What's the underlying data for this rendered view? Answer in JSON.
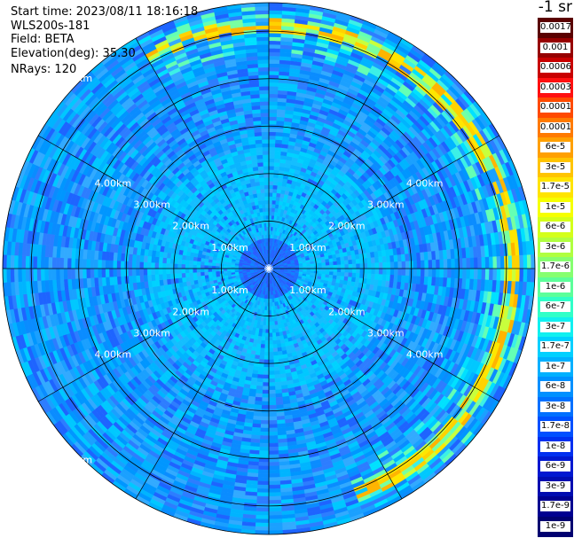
{
  "header": {
    "start_time": "Start time: 2023/08/11 18:16:18",
    "device": "WLS200s-181",
    "field": "Field: BETA",
    "elevation": "Elevation(deg): 35.30",
    "nrays": "NRays: 120"
  },
  "unit_label": "-1 sr",
  "chart_data": {
    "type": "heatmap",
    "projection": "polar",
    "n_rays": 120,
    "range_rings": [
      {
        "label": "1.00km",
        "km": 1.0
      },
      {
        "label": "2.00km",
        "km": 2.0
      },
      {
        "label": "3.00km",
        "km": 3.0
      },
      {
        "label": "4.00km",
        "km": 4.0
      },
      {
        "label": "5.00km",
        "km": 5.0
      }
    ],
    "max_range_km": 5.6,
    "colorbar": {
      "labels": [
        "0.0017",
        "0.001",
        "0.0006",
        "0.0003",
        "0.00017",
        "0.0001",
        "6e-5",
        "3e-5",
        "1.7e-5",
        "1e-5",
        "6e-6",
        "3e-6",
        "1.7e-6",
        "1e-6",
        "6e-7",
        "3e-7",
        "1.7e-7",
        "1e-7",
        "6e-8",
        "3e-8",
        "1.7e-8",
        "1e-8",
        "6e-9",
        "3e-9",
        "1.7e-9",
        "1e-9"
      ],
      "colors": [
        "#5a0000",
        "#960000",
        "#c80000",
        "#ff1010",
        "#ff4a00",
        "#ff7a00",
        "#ffa000",
        "#ffc400",
        "#ffe400",
        "#f6ff00",
        "#d4ff1a",
        "#b0ff40",
        "#86ff70",
        "#5cff9a",
        "#30ffc8",
        "#10f0f0",
        "#00d0ff",
        "#00b0ff",
        "#0090ff",
        "#0070ff",
        "#0050ff",
        "#0030f0",
        "#0018d0",
        "#000cb0",
        "#000090",
        "#000070"
      ]
    },
    "features": [
      {
        "name": "central background",
        "range_km": [
          0,
          0.7
        ],
        "level": "1e-7"
      },
      {
        "name": "inner range",
        "range_km": [
          0.7,
          2.6
        ],
        "level": "1.7e-7"
      },
      {
        "name": "outer range",
        "range_km": [
          2.6,
          5.6
        ],
        "level": "6e-8"
      },
      {
        "name": "enhanced arc",
        "range_km": [
          4.5,
          5.5
        ],
        "azimuth_deg": [
          330,
          160
        ],
        "level": "1e-5"
      }
    ]
  }
}
